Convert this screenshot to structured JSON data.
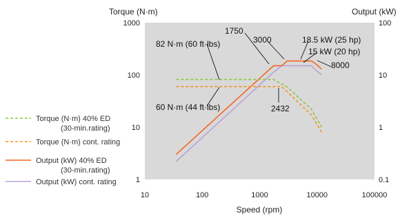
{
  "chart_data": {
    "type": "line",
    "xlabel": "Speed (rpm)",
    "ylabel_left": "Torque (N·m)",
    "ylabel_right": "Output (kW)",
    "x_scale": "log",
    "y_scale": "log",
    "xlim": [
      10,
      100000
    ],
    "ylim_left": [
      1,
      1000
    ],
    "ylim_right": [
      0.1,
      100
    ],
    "x_ticks": [
      "10",
      "100",
      "1000",
      "10000",
      "100000"
    ],
    "y_ticks_left": [
      "1",
      "10",
      "100",
      "1000"
    ],
    "y_ticks_right": [
      "0.1",
      "1",
      "10",
      "100"
    ],
    "grid": false,
    "plot_background": "#d9d9d9",
    "legend_position": "left",
    "series": [
      {
        "name": "Torque (N·m) 40% ED",
        "name2": "(30-min.rating)",
        "axis": "left",
        "style": "dashed",
        "color": "#8dc63f",
        "x": [
          35,
          1750,
          3000,
          8000,
          12000
        ],
        "y": [
          82,
          82,
          59,
          22,
          10
        ]
      },
      {
        "name": "Torque (N·m) cont. rating",
        "axis": "left",
        "style": "dashed",
        "color": "#f7941d",
        "x": [
          35,
          1700,
          2432,
          8000,
          12000
        ],
        "y": [
          60,
          60,
          60,
          17,
          8
        ]
      },
      {
        "name": "Output (kW) 40% ED",
        "name2": "(30-min.rating)",
        "axis": "right",
        "style": "solid",
        "color": "#f26522",
        "x": [
          35,
          1750,
          2432,
          3000,
          8000,
          9000,
          12000
        ],
        "y": [
          0.3,
          15,
          15,
          18.5,
          18.5,
          17,
          13
        ]
      },
      {
        "name": "Output (kW) cont. rating",
        "axis": "right",
        "style": "solid",
        "color": "#b9a3d6",
        "x": [
          35,
          1700,
          2432,
          8000,
          9000,
          12000
        ],
        "y": [
          0.22,
          11,
          15,
          15,
          13,
          10
        ]
      }
    ],
    "annotations": [
      {
        "text": "82 N·m (60 ft·lbs)",
        "x": 180,
        "y": 82,
        "axis": "left"
      },
      {
        "text": "60 N·m (44 ft·lbs)",
        "x": 180,
        "y": 60,
        "axis": "left"
      },
      {
        "text": "1750",
        "x": 1750,
        "y": 15,
        "axis": "right"
      },
      {
        "text": "3000",
        "x": 3000,
        "y": 18.5,
        "axis": "right"
      },
      {
        "text": "2432",
        "x": 2432,
        "y": 60,
        "axis": "left"
      },
      {
        "text": "18.5 kW (25 hp)",
        "x": 5500,
        "y": 18.5,
        "axis": "right"
      },
      {
        "text": "15 kW (20 hp)",
        "x": 5500,
        "y": 15,
        "axis": "right"
      },
      {
        "text": "8000",
        "x": 8000,
        "y": 18.5,
        "axis": "right"
      }
    ]
  }
}
